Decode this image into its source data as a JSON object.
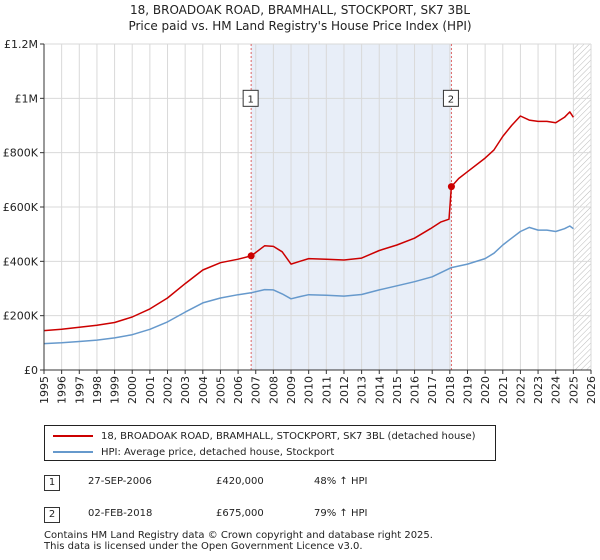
{
  "chart_data": {
    "type": "line",
    "title": "18, BROADOAK ROAD, BRAMHALL, STOCKPORT, SK7 3BL",
    "subtitle": "Price paid vs. HM Land Registry's House Price Index (HPI)",
    "xlim": [
      1995,
      2026
    ],
    "ylim": [
      0,
      1200000
    ],
    "x_ticks": [
      1995,
      1996,
      1997,
      1998,
      1999,
      2000,
      2001,
      2002,
      2003,
      2004,
      2005,
      2006,
      2007,
      2008,
      2009,
      2010,
      2011,
      2012,
      2013,
      2014,
      2015,
      2016,
      2017,
      2018,
      2019,
      2020,
      2021,
      2022,
      2023,
      2024,
      2025,
      2026
    ],
    "y_ticks": [
      {
        "value": 0,
        "label": "£0"
      },
      {
        "value": 200000,
        "label": "£200K"
      },
      {
        "value": 400000,
        "label": "£400K"
      },
      {
        "value": 600000,
        "label": "£600K"
      },
      {
        "value": 800000,
        "label": "£800K"
      },
      {
        "value": 1000000,
        "label": "£1M"
      },
      {
        "value": 1200000,
        "label": "£1.2M"
      }
    ],
    "grid": true,
    "shaded_span": [
      2006.74,
      2018.09
    ],
    "hatched_from": 2025.0,
    "series": [
      {
        "name": "18, BROADOAK ROAD, BRAMHALL, STOCKPORT, SK7 3BL (detached house)",
        "color": "#cc0000",
        "x": [
          1995.0,
          1996.0,
          1997.0,
          1998.0,
          1999.0,
          2000.0,
          2001.0,
          2002.0,
          2003.0,
          2004.0,
          2005.0,
          2006.0,
          2006.74,
          2007.5,
          2008.0,
          2008.5,
          2009.0,
          2009.5,
          2010.0,
          2011.0,
          2012.0,
          2013.0,
          2014.0,
          2015.0,
          2016.0,
          2016.9,
          2017.5,
          2017.95,
          2018.09,
          2018.5,
          2019.0,
          2020.0,
          2020.5,
          2021.0,
          2021.5,
          2022.0,
          2022.5,
          2023.0,
          2023.5,
          2024.0,
          2024.5,
          2024.8,
          2025.0
        ],
        "values": [
          145000,
          150000,
          157000,
          165000,
          175000,
          195000,
          225000,
          265000,
          318000,
          368000,
          395000,
          408000,
          420000,
          457000,
          455000,
          435000,
          390000,
          400000,
          410000,
          408000,
          405000,
          412000,
          440000,
          460000,
          485000,
          520000,
          545000,
          555000,
          675000,
          705000,
          730000,
          780000,
          810000,
          860000,
          900000,
          935000,
          920000,
          915000,
          915000,
          910000,
          930000,
          950000,
          930000
        ]
      },
      {
        "name": "HPI: Average price, detached house, Stockport",
        "color": "#6699cc",
        "x": [
          1995.0,
          1996.0,
          1997.0,
          1998.0,
          1999.0,
          2000.0,
          2001.0,
          2002.0,
          2003.0,
          2004.0,
          2005.0,
          2006.0,
          2006.74,
          2007.5,
          2008.0,
          2008.5,
          2009.0,
          2009.5,
          2010.0,
          2011.0,
          2012.0,
          2013.0,
          2014.0,
          2015.0,
          2016.0,
          2017.0,
          2018.09,
          2019.0,
          2020.0,
          2020.5,
          2021.0,
          2021.5,
          2022.0,
          2022.5,
          2023.0,
          2023.5,
          2024.0,
          2024.5,
          2024.8,
          2025.0
        ],
        "values": [
          97000,
          100000,
          105000,
          110000,
          118000,
          130000,
          150000,
          177000,
          213000,
          247000,
          265000,
          277000,
          284000,
          296000,
          295000,
          280000,
          262000,
          270000,
          277000,
          275000,
          272000,
          278000,
          295000,
          310000,
          325000,
          343000,
          377000,
          390000,
          410000,
          430000,
          460000,
          485000,
          510000,
          525000,
          515000,
          515000,
          510000,
          520000,
          530000,
          520000
        ]
      }
    ],
    "annotations": [
      {
        "label": "1",
        "x": 2006.74,
        "value": 420000
      },
      {
        "label": "2",
        "x": 2018.09,
        "value": 675000
      }
    ],
    "annotation_box_value": 1000000
  },
  "legend": {
    "items": [
      {
        "label": "18, BROADOAK ROAD, BRAMHALL, STOCKPORT, SK7 3BL (detached house)",
        "color": "#cc0000"
      },
      {
        "label": "HPI: Average price, detached house, Stockport",
        "color": "#6699cc"
      }
    ]
  },
  "sales": [
    {
      "num": "1",
      "date": "27-SEP-2006",
      "price": "£420,000",
      "hpi": "48% ↑ HPI"
    },
    {
      "num": "2",
      "date": "02-FEB-2018",
      "price": "£675,000",
      "hpi": "79% ↑ HPI"
    }
  ],
  "footer": {
    "line1": "Contains HM Land Registry data © Crown copyright and database right 2025.",
    "line2": "This data is licensed under the Open Government Licence v3.0."
  }
}
